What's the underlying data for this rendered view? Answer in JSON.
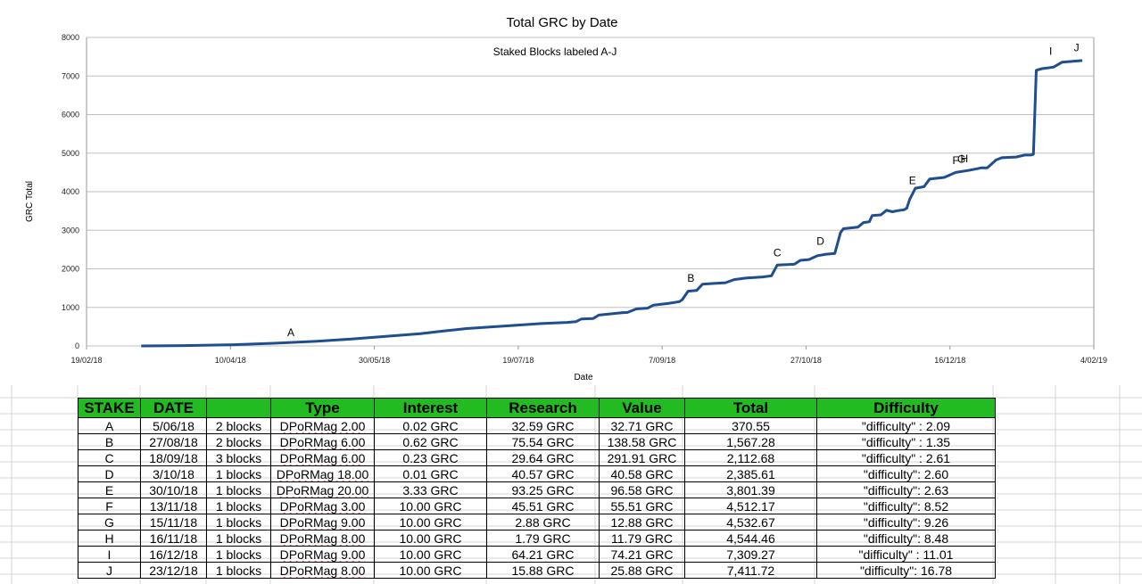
{
  "chart_data": {
    "type": "line",
    "title": "Total GRC by Date",
    "subtitle": "Staked Blocks labeled A-J",
    "xlabel": "Date",
    "ylabel": "GRC Total",
    "xlim": [
      "2018-02-19",
      "2019-02-04"
    ],
    "ylim": [
      0,
      8000
    ],
    "x_ticks": [
      "19/02/18",
      "10/04/18",
      "30/05/18",
      "19/07/18",
      "7/09/18",
      "27/10/18",
      "16/12/18",
      "4/02/19"
    ],
    "y_ticks": [
      "0",
      "1000",
      "2000",
      "3000",
      "4000",
      "5000",
      "6000",
      "7000",
      "8000"
    ],
    "grid": "horizontal",
    "legend": "none",
    "line_color": "#1f4e8f",
    "series": [
      {
        "points": [
          [
            "2018-03-10",
            0
          ],
          [
            "2018-03-25",
            10
          ],
          [
            "2018-04-10",
            30
          ],
          [
            "2018-04-25",
            70
          ],
          [
            "2018-05-10",
            120
          ],
          [
            "2018-05-22",
            180
          ],
          [
            "2018-06-05",
            260
          ],
          [
            "2018-06-15",
            320
          ],
          [
            "2018-06-22",
            380
          ],
          [
            "2018-07-01",
            450
          ],
          [
            "2018-07-15",
            520
          ],
          [
            "2018-07-27",
            580
          ],
          [
            "2018-08-05",
            610
          ],
          [
            "2018-08-08",
            630
          ],
          [
            "2018-08-10",
            700
          ],
          [
            "2018-08-14",
            710
          ],
          [
            "2018-08-16",
            800
          ],
          [
            "2018-08-24",
            860
          ],
          [
            "2018-08-26",
            870
          ],
          [
            "2018-08-29",
            960
          ],
          [
            "2018-09-02",
            980
          ],
          [
            "2018-09-04",
            1060
          ],
          [
            "2018-09-09",
            1100
          ],
          [
            "2018-09-13",
            1150
          ],
          [
            "2018-09-14",
            1200
          ],
          [
            "2018-09-16",
            1420
          ],
          [
            "2018-09-19",
            1440
          ],
          [
            "2018-09-21",
            1600
          ],
          [
            "2018-09-25",
            1620
          ],
          [
            "2018-09-29",
            1640
          ],
          [
            "2018-10-02",
            1720
          ],
          [
            "2018-10-06",
            1760
          ],
          [
            "2018-10-12",
            1790
          ],
          [
            "2018-10-15",
            1820
          ],
          [
            "2018-10-17",
            2100
          ],
          [
            "2018-10-23",
            2120
          ],
          [
            "2018-10-25",
            2220
          ],
          [
            "2018-10-28",
            2240
          ],
          [
            "2018-10-31",
            2340
          ],
          [
            "2018-11-03",
            2380
          ],
          [
            "2018-11-06",
            2400
          ],
          [
            "2018-11-08",
            2940
          ],
          [
            "2018-11-09",
            3040
          ],
          [
            "2018-11-14",
            3080
          ],
          [
            "2018-11-16",
            3200
          ],
          [
            "2018-11-18",
            3220
          ],
          [
            "2018-11-19",
            3380
          ],
          [
            "2018-11-22",
            3400
          ],
          [
            "2018-11-24",
            3520
          ],
          [
            "2018-11-26",
            3480
          ],
          [
            "2018-11-28",
            3510
          ],
          [
            "2018-11-30",
            3530
          ],
          [
            "2018-12-01",
            3570
          ],
          [
            "2018-12-02",
            3800
          ],
          [
            "2018-12-04",
            4090
          ],
          [
            "2018-12-07",
            4130
          ],
          [
            "2018-12-09",
            4330
          ],
          [
            "2018-12-14",
            4370
          ],
          [
            "2018-12-18",
            4500
          ],
          [
            "2018-12-23",
            4560
          ],
          [
            "2018-12-27",
            4620
          ],
          [
            "2018-12-29",
            4620
          ],
          [
            "2019-01-01",
            4820
          ],
          [
            "2019-01-03",
            4880
          ],
          [
            "2019-01-08",
            4900
          ],
          [
            "2019-01-11",
            4950
          ],
          [
            "2019-01-13",
            4950
          ],
          [
            "2019-01-14",
            4970
          ],
          [
            "2019-01-15",
            7150
          ],
          [
            "2019-01-17",
            7190
          ],
          [
            "2019-01-21",
            7230
          ],
          [
            "2019-01-24",
            7360
          ],
          [
            "2019-01-31",
            7400
          ]
        ]
      }
    ],
    "annotations": [
      {
        "text": "A",
        "x": "2018-05-01",
        "y": 250
      },
      {
        "text": "B",
        "x": "2018-09-17",
        "y": 1670
      },
      {
        "text": "C",
        "x": "2018-10-17",
        "y": 2320
      },
      {
        "text": "D",
        "x": "2018-11-01",
        "y": 2620
      },
      {
        "text": "E",
        "x": "2018-12-03",
        "y": 4200
      },
      {
        "text": "F",
        "x": "2018-12-18",
        "y": 4720
      },
      {
        "text": "G",
        "x": "2018-12-20",
        "y": 4750
      },
      {
        "text": "H",
        "x": "2018-12-21",
        "y": 4760
      },
      {
        "text": "I",
        "x": "2019-01-20",
        "y": 7550
      },
      {
        "text": "J",
        "x": "2019-01-29",
        "y": 7640
      }
    ]
  },
  "table": {
    "headers": [
      "STAKE",
      "DATE",
      "",
      "Type",
      "Interest",
      "Research",
      "Value",
      "Total",
      "Difficulty"
    ],
    "rows": [
      [
        "A",
        "5/06/18",
        "2 blocks",
        "DPoRMag 2.00",
        "0.02 GRC",
        "32.59 GRC",
        "32.71 GRC",
        "370.55",
        "\"difficulty\" : 2.09"
      ],
      [
        "B",
        "27/08/18",
        "2 blocks",
        "DPoRMag 6.00",
        "0.62 GRC",
        "75.54 GRC",
        "138.58 GRC",
        "1,567.28",
        "\"difficulty\" : 1.35"
      ],
      [
        "C",
        "18/09/18",
        "3 blocks",
        "DPoRMag 6.00",
        "0.23 GRC",
        "29.64 GRC",
        "291.91 GRC",
        "2,112.68",
        "\"difficulty\" : 2.61"
      ],
      [
        "D",
        "3/10/18",
        "1 blocks",
        "DPoRMag 18.00",
        "0.01 GRC",
        "40.57 GRC",
        "40.58 GRC",
        "2,385.61",
        "\"difficulty\": 2.60"
      ],
      [
        "E",
        "30/10/18",
        "1 blocks",
        "DPoRMag 20.00",
        "3.33 GRC",
        "93.25 GRC",
        "96.58 GRC",
        "3,801.39",
        "\"difficulty\": 2.63"
      ],
      [
        "F",
        "13/11/18",
        "1 blocks",
        "DPoRMag 3.00",
        "10.00 GRC",
        "45.51 GRC",
        "55.51 GRC",
        "4,512.17",
        "\"difficulty\": 8.52"
      ],
      [
        "G",
        "15/11/18",
        "1 blocks",
        "DPoRMag 9.00",
        "10.00 GRC",
        "2.88 GRC",
        "12.88 GRC",
        "4,532.67",
        "\"difficulty\": 9.26"
      ],
      [
        "H",
        "16/11/18",
        "1 blocks",
        "DPoRMag 8.00",
        "10.00 GRC",
        "1.79 GRC",
        "11.79 GRC",
        "4,544.46",
        "\"difficulty\": 8.48"
      ],
      [
        "I",
        "16/12/18",
        "1 blocks",
        "DPoRMag 9.00",
        "10.00 GRC",
        "64.21 GRC",
        "74.21 GRC",
        "7,309.27",
        "\"difficulty\" : 11.01"
      ],
      [
        "J",
        "23/12/18",
        "1 blocks",
        "DPoRMag 8.00",
        "10.00 GRC",
        "15.88 GRC",
        "25.88 GRC",
        "7,411.72",
        "\"difficulty\": 16.78"
      ]
    ],
    "header_color": "#22bb22"
  }
}
